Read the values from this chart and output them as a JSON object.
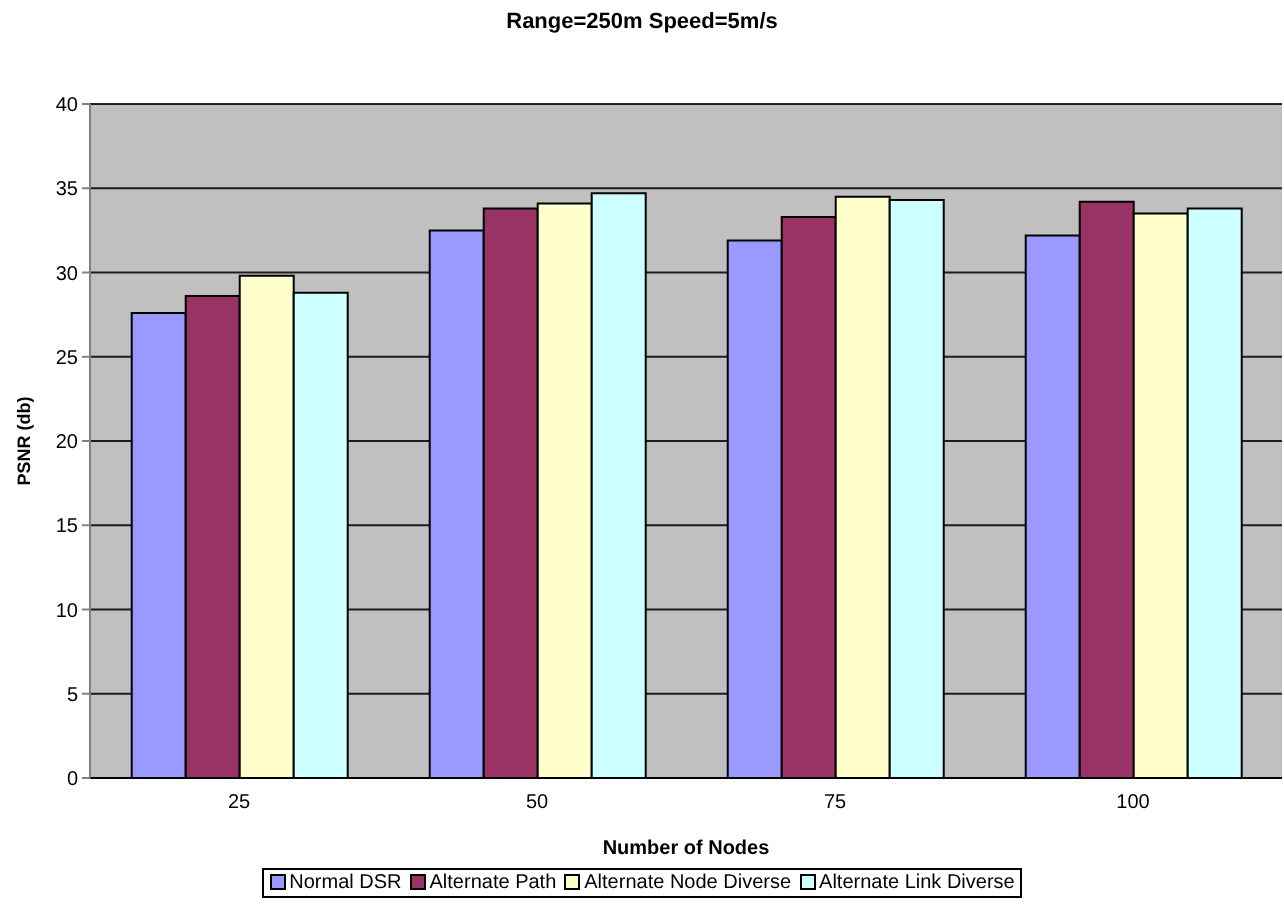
{
  "chart_data": {
    "type": "bar",
    "title": "Range=250m Speed=5m/s",
    "xlabel": "Number of Nodes",
    "ylabel": "PSNR (db)",
    "categories": [
      "25",
      "50",
      "75",
      "100"
    ],
    "series": [
      {
        "name": "Normal DSR",
        "color": "#9999ff",
        "values": [
          27.6,
          32.5,
          31.9,
          32.2
        ]
      },
      {
        "name": "Alternate Path",
        "color": "#993366",
        "values": [
          28.6,
          33.8,
          33.3,
          34.2
        ]
      },
      {
        "name": "Alternate Node Diverse",
        "color": "#ffffcc",
        "values": [
          29.8,
          34.1,
          34.5,
          33.5
        ]
      },
      {
        "name": "Alternate Link Diverse",
        "color": "#ccffff",
        "values": [
          28.8,
          34.7,
          34.3,
          33.8
        ]
      }
    ],
    "ylim": [
      0,
      40
    ],
    "yticks": [
      0,
      5,
      10,
      15,
      20,
      25,
      30,
      35,
      40
    ],
    "grid": "y",
    "legend": "bottom"
  }
}
